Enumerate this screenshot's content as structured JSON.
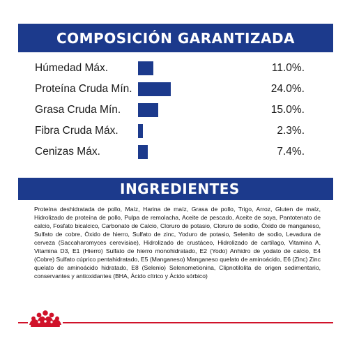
{
  "composition": {
    "title": "COMPOSICIÓN GARANTIZADA",
    "items": [
      {
        "label": "Húmedad Máx.",
        "value": "11.0%.",
        "percent": 11.0
      },
      {
        "label": "Proteína Cruda Mín.",
        "value": "24.0%.",
        "percent": 24.0
      },
      {
        "label": "Grasa Cruda Mín.",
        "value": "15.0%.",
        "percent": 15.0
      },
      {
        "label": "Fibra Cruda Máx.",
        "value": "2.3%.",
        "percent": 2.3
      },
      {
        "label": "Cenizas Máx.",
        "value": "7.4%.",
        "percent": 7.4
      }
    ]
  },
  "ingredients": {
    "title": "INGREDIENTES",
    "text": "Proteína deshidratada de pollo, Maíz, Harina de maíz, Grasa de pollo, Trigo, Arroz, Gluten de maíz, Hidrolizado de proteína de pollo, Pulpa de remolacha, Aceite de pescado, Aceite de soya, Pantotenato de calcio, Fosfato bicalcico, Carbonato de Calcio, Cloruro de potasio, Cloruro de sodio, Óxido de manganeso, Sulfato de cobre, Óxido de hierro, Sulfato de zinc, Yoduro de potasio, Selenito de sodio, Levadura de cerveza (Saccaharomyces cerevisiae), Hidrolizado de crustáceo, Hidrolizado de cartílago, Vitamina A, Vitamina D3, E1 (Hierro) Sulfato de hierro monohidratado, E2 (Yodo) Anhidro de yodato de calcio, E4 (Cobre) Sulfato cúprico pentahidratado, E5 (Manganeso) Manganeso quelato de aminoácido, E6 (Zinc) Zinc quelato de aminoácido hidratado, E8 (Selenio) Selenometionina, Clipnotilolita de origen sedimentario, conservantes y antioxidantes (BHA, Ácido cítrico y Ácido sórbico)"
  },
  "brand": {
    "logo": "royal-canin-crown-logo",
    "color_blue": "#1c3a8c",
    "color_red": "#d0122a"
  }
}
